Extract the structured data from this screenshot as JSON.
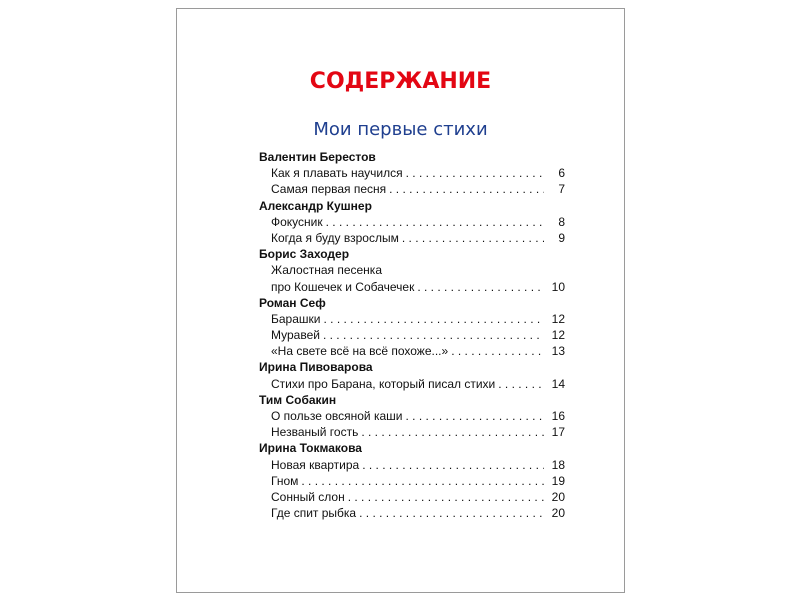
{
  "title": "СОДЕРЖАНИЕ",
  "subtitle": "Мои первые стихи",
  "colors": {
    "title": "#e30613",
    "subtitle": "#1f3f8f"
  },
  "sections": [
    {
      "author": "Валентин Берестов",
      "items": [
        {
          "title": "Как я плавать научился",
          "page": "6"
        },
        {
          "title": "Самая первая песня",
          "page": "7"
        }
      ]
    },
    {
      "author": "Александр Кушнер",
      "items": [
        {
          "title": "Фокусник",
          "page": "8"
        },
        {
          "title": "Когда я буду взрослым",
          "page": "9"
        }
      ]
    },
    {
      "author": "Борис Заходер",
      "items": [
        {
          "title_line1": "Жалостная песенка",
          "title": "про Кошечек и Собачечек",
          "page": "10"
        }
      ]
    },
    {
      "author": "Роман Сеф",
      "items": [
        {
          "title": "Барашки",
          "page": "12"
        },
        {
          "title": "Муравей",
          "page": "12"
        },
        {
          "title": "«На свете всё на всё похоже...»",
          "page": "13"
        }
      ]
    },
    {
      "author": "Ирина Пивоварова",
      "items": [
        {
          "title": "Стихи про Барана, который писал стихи",
          "page": "14"
        }
      ]
    },
    {
      "author": "Тим Собакин",
      "items": [
        {
          "title": "О пользе овсяной каши",
          "page": "16"
        },
        {
          "title": "Незваный гость",
          "page": "17"
        }
      ]
    },
    {
      "author": "Ирина Токмакова",
      "items": [
        {
          "title": "Новая квартира",
          "page": "18"
        },
        {
          "title": "Гном",
          "page": "19"
        },
        {
          "title": "Сонный слон",
          "page": "20"
        },
        {
          "title": "Где спит рыбка",
          "page": "20"
        }
      ]
    }
  ]
}
